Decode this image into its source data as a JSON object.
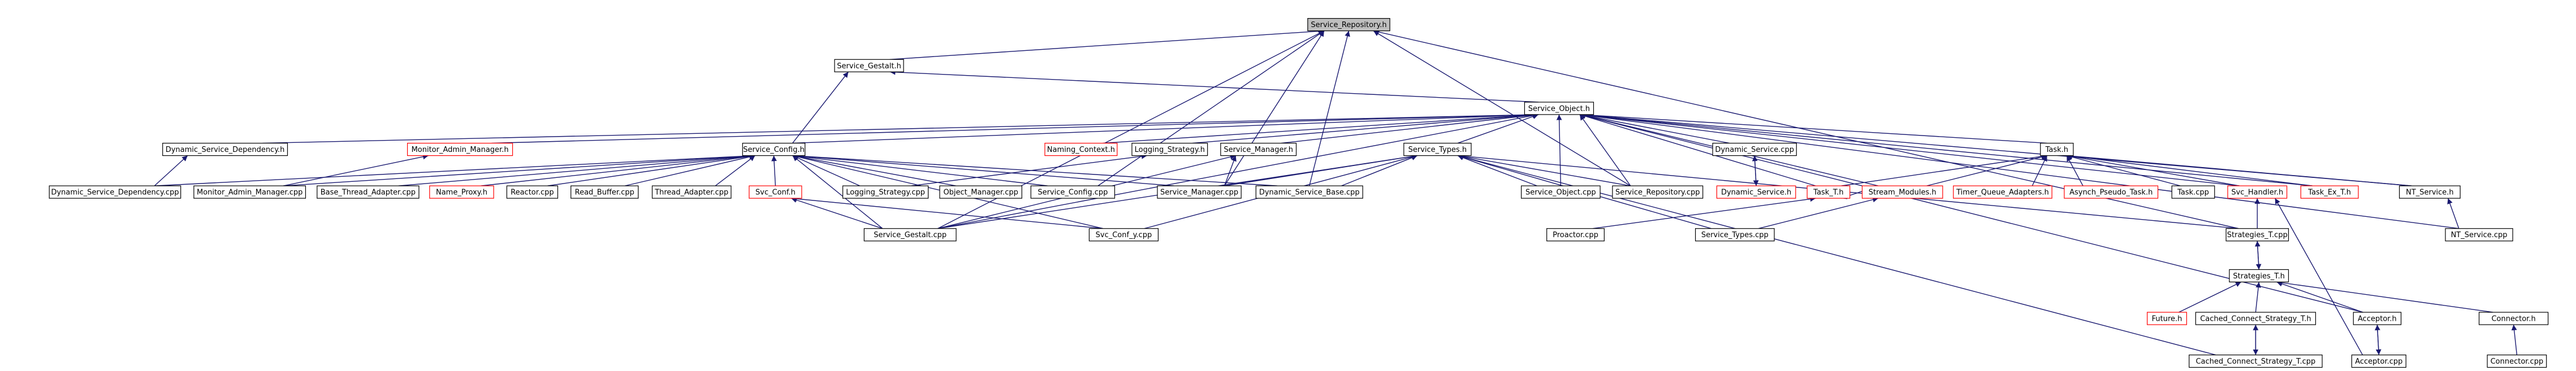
{
  "nodes": [
    {
      "label": "Service_Repository.h",
      "color": "#000000",
      "fill": "#bfbfbf"
    },
    {
      "label": "Service_Gestalt.h",
      "color": "#000000",
      "fill": "#ffffff"
    },
    {
      "label": "Service_Object.h",
      "color": "#000000",
      "fill": "#ffffff"
    },
    {
      "label": "Dynamic_Service_Dependency.h",
      "color": "#000000",
      "fill": "#ffffff"
    },
    {
      "label": "Monitor_Admin_Manager.h",
      "color": "#ff0000",
      "fill": "#ffffff"
    },
    {
      "label": "Service_Config.h",
      "color": "#000000",
      "fill": "#ffffff"
    },
    {
      "label": "Naming_Context.h",
      "color": "#ff0000",
      "fill": "#ffffff"
    },
    {
      "label": "Logging_Strategy.h",
      "color": "#000000",
      "fill": "#ffffff"
    },
    {
      "label": "Service_Manager.h",
      "color": "#000000",
      "fill": "#ffffff"
    },
    {
      "label": "Service_Types.h",
      "color": "#000000",
      "fill": "#ffffff"
    },
    {
      "label": "Dynamic_Service.cpp",
      "color": "#000000",
      "fill": "#ffffff"
    },
    {
      "label": "Task.h",
      "color": "#000000",
      "fill": "#ffffff"
    },
    {
      "label": "Dynamic_Service_Dependency.cpp",
      "color": "#000000",
      "fill": "#ffffff"
    },
    {
      "label": "Monitor_Admin_Manager.cpp",
      "color": "#000000",
      "fill": "#ffffff"
    },
    {
      "label": "Base_Thread_Adapter.cpp",
      "color": "#000000",
      "fill": "#ffffff"
    },
    {
      "label": "Name_Proxy.h",
      "color": "#ff0000",
      "fill": "#ffffff"
    },
    {
      "label": "Reactor.cpp",
      "color": "#000000",
      "fill": "#ffffff"
    },
    {
      "label": "Read_Buffer.cpp",
      "color": "#000000",
      "fill": "#ffffff"
    },
    {
      "label": "Thread_Adapter.cpp",
      "color": "#000000",
      "fill": "#ffffff"
    },
    {
      "label": "Svc_Conf.h",
      "color": "#ff0000",
      "fill": "#ffffff"
    },
    {
      "label": "Logging_Strategy.cpp",
      "color": "#000000",
      "fill": "#ffffff"
    },
    {
      "label": "Object_Manager.cpp",
      "color": "#000000",
      "fill": "#ffffff"
    },
    {
      "label": "Service_Config.cpp",
      "color": "#000000",
      "fill": "#ffffff"
    },
    {
      "label": "Service_Manager.cpp",
      "color": "#000000",
      "fill": "#ffffff"
    },
    {
      "label": "Dynamic_Service_Base.cpp",
      "color": "#000000",
      "fill": "#ffffff"
    },
    {
      "label": "Service_Object.cpp",
      "color": "#000000",
      "fill": "#ffffff"
    },
    {
      "label": "Service_Repository.cpp",
      "color": "#000000",
      "fill": "#ffffff"
    },
    {
      "label": "Dynamic_Service.h",
      "color": "#ff0000",
      "fill": "#ffffff"
    },
    {
      "label": "Task_T.h",
      "color": "#ff0000",
      "fill": "#ffffff"
    },
    {
      "label": "Stream_Modules.h",
      "color": "#ff0000",
      "fill": "#ffffff"
    },
    {
      "label": "Timer_Queue_Adapters.h",
      "color": "#ff0000",
      "fill": "#ffffff"
    },
    {
      "label": "Asynch_Pseudo_Task.h",
      "color": "#ff0000",
      "fill": "#ffffff"
    },
    {
      "label": "Task.cpp",
      "color": "#000000",
      "fill": "#ffffff"
    },
    {
      "label": "Svc_Handler.h",
      "color": "#ff0000",
      "fill": "#ffffff"
    },
    {
      "label": "Task_Ex_T.h",
      "color": "#ff0000",
      "fill": "#ffffff"
    },
    {
      "label": "NT_Service.h",
      "color": "#000000",
      "fill": "#ffffff"
    },
    {
      "label": "Service_Gestalt.cpp",
      "color": "#000000",
      "fill": "#ffffff"
    },
    {
      "label": "Svc_Conf_y.cpp",
      "color": "#000000",
      "fill": "#ffffff"
    },
    {
      "label": "Proactor.cpp",
      "color": "#000000",
      "fill": "#ffffff"
    },
    {
      "label": "Service_Types.cpp",
      "color": "#000000",
      "fill": "#ffffff"
    },
    {
      "label": "Strategies_T.cpp",
      "color": "#000000",
      "fill": "#ffffff"
    },
    {
      "label": "NT_Service.cpp",
      "color": "#000000",
      "fill": "#ffffff"
    },
    {
      "label": "Strategies_T.h",
      "color": "#000000",
      "fill": "#ffffff"
    },
    {
      "label": "Future.h",
      "color": "#ff0000",
      "fill": "#ffffff"
    },
    {
      "label": "Cached_Connect_Strategy_T.h",
      "color": "#000000",
      "fill": "#ffffff"
    },
    {
      "label": "Acceptor.h",
      "color": "#000000",
      "fill": "#ffffff"
    },
    {
      "label": "Connector.h",
      "color": "#000000",
      "fill": "#ffffff"
    },
    {
      "label": "Cached_Connect_Strategy_T.cpp",
      "color": "#000000",
      "fill": "#ffffff"
    },
    {
      "label": "Acceptor.cpp",
      "color": "#000000",
      "fill": "#ffffff"
    },
    {
      "label": "Connector.cpp",
      "color": "#000000",
      "fill": "#ffffff"
    }
  ],
  "edges": [
    [
      1,
      0
    ],
    [
      2,
      1
    ],
    [
      5,
      1
    ],
    [
      5,
      2
    ],
    [
      3,
      2
    ],
    [
      4,
      2
    ],
    [
      6,
      2
    ],
    [
      7,
      2
    ],
    [
      8,
      2
    ],
    [
      9,
      2
    ],
    [
      10,
      2
    ],
    [
      11,
      2
    ],
    [
      25,
      2
    ],
    [
      26,
      2
    ],
    [
      28,
      2
    ],
    [
      29,
      2
    ],
    [
      33,
      2
    ],
    [
      34,
      2
    ],
    [
      35,
      2
    ],
    [
      36,
      2
    ],
    [
      45,
      2
    ],
    [
      41,
      2
    ],
    [
      22,
      0
    ],
    [
      23,
      0
    ],
    [
      24,
      0
    ],
    [
      26,
      0
    ],
    [
      36,
      0
    ],
    [
      40,
      0
    ],
    [
      12,
      3
    ],
    [
      13,
      4
    ],
    [
      12,
      5
    ],
    [
      13,
      5
    ],
    [
      14,
      5
    ],
    [
      15,
      5
    ],
    [
      16,
      5
    ],
    [
      17,
      5
    ],
    [
      18,
      5
    ],
    [
      19,
      5
    ],
    [
      20,
      5
    ],
    [
      21,
      5
    ],
    [
      22,
      5
    ],
    [
      23,
      5
    ],
    [
      24,
      5
    ],
    [
      36,
      5
    ],
    [
      37,
      5
    ],
    [
      20,
      7
    ],
    [
      23,
      8
    ],
    [
      36,
      8
    ],
    [
      36,
      19
    ],
    [
      37,
      19
    ],
    [
      23,
      9
    ],
    [
      24,
      9
    ],
    [
      25,
      9
    ],
    [
      26,
      9
    ],
    [
      36,
      9
    ],
    [
      37,
      9
    ],
    [
      39,
      9
    ],
    [
      40,
      9
    ],
    [
      47,
      9
    ],
    [
      27,
      10
    ],
    [
      10,
      27
    ],
    [
      28,
      11
    ],
    [
      29,
      11
    ],
    [
      30,
      11
    ],
    [
      31,
      11
    ],
    [
      32,
      11
    ],
    [
      33,
      11
    ],
    [
      34,
      11
    ],
    [
      35,
      11
    ],
    [
      29,
      28
    ],
    [
      38,
      28
    ],
    [
      39,
      29
    ],
    [
      40,
      33
    ],
    [
      48,
      33
    ],
    [
      40,
      42
    ],
    [
      42,
      40
    ],
    [
      43,
      42
    ],
    [
      44,
      42
    ],
    [
      45,
      42
    ],
    [
      46,
      42
    ],
    [
      47,
      44
    ],
    [
      44,
      47
    ],
    [
      48,
      45
    ],
    [
      45,
      48
    ],
    [
      49,
      46
    ],
    [
      41,
      35
    ]
  ],
  "edge_color": "#191970"
}
